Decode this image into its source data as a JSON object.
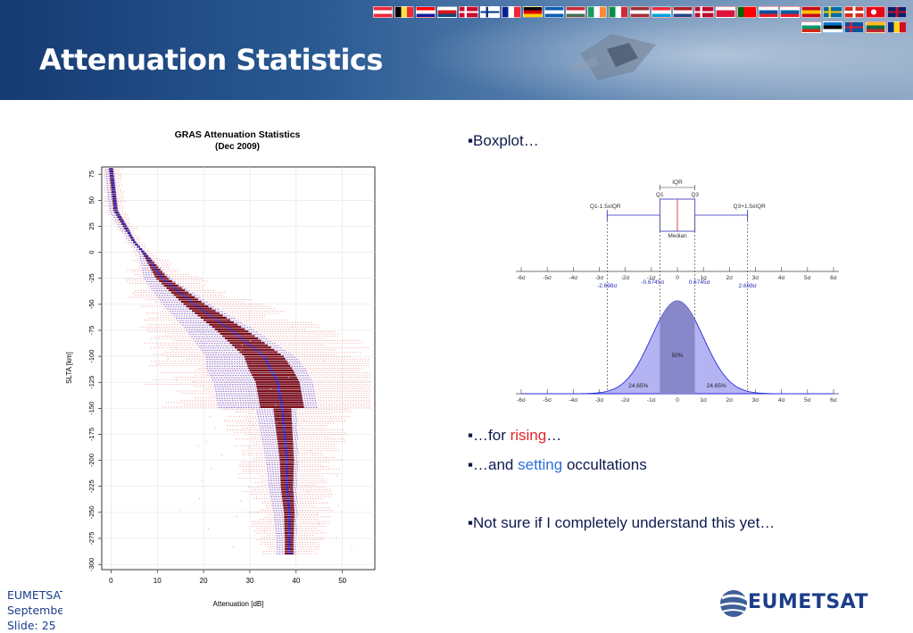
{
  "slide": {
    "title": "Attenuation Statistics",
    "bullets": {
      "b1": "▪Boxplot…",
      "b2_pre": "▪…for ",
      "b2_hl": "rising",
      "b2_post": "…",
      "b3_pre": "▪…and ",
      "b3_hl": "setting",
      "b3_post": " occultations",
      "b4": "▪Not sure if I completely understand this yet…"
    },
    "footer": {
      "org": "EUMETSAT",
      "date": "Septembe",
      "slide": "Slide: 25"
    },
    "logo_text": "EUMETSAT",
    "colors": {
      "header_dark": "#163a72",
      "accent_red": "#e0262b",
      "accent_blue": "#2e6fd8",
      "text_dark": "#0d1a4d"
    },
    "flag_icons": [
      "austria-flag",
      "belgium-flag",
      "croatia-flag",
      "czech-flag",
      "denmark-flag",
      "finland-flag",
      "france-flag",
      "germany-flag",
      "greece-flag",
      "hungary-flag",
      "ireland-flag",
      "italy-flag",
      "latvia-flag",
      "luxembourg-flag",
      "netherlands-flag",
      "norway-flag",
      "poland-flag",
      "portugal-flag",
      "slovakia-flag",
      "slovenia-flag",
      "spain-flag",
      "sweden-flag",
      "switzerland-flag",
      "turkey-flag",
      "uk-flag",
      "bulgaria-flag",
      "estonia-flag",
      "iceland-flag",
      "lithuania-flag",
      "romania-flag"
    ]
  },
  "chart_data": [
    {
      "type": "scatter",
      "title": "GRAS Attenuation Statistics",
      "subtitle": "(Dec 2009)",
      "xlabel": "Attenuation [dB]",
      "ylabel": "SLTA [km]",
      "xlim": [
        -2,
        57
      ],
      "ylim": [
        -305,
        82
      ],
      "xticks": [
        "0",
        "10",
        "20",
        "30",
        "40",
        "50"
      ],
      "yticks": [
        "75",
        "50",
        "25",
        "0",
        "-25",
        "-50",
        "-75",
        "-100",
        "-125",
        "-150",
        "-175",
        "-200",
        "-225",
        "-250",
        "-275",
        "-300"
      ],
      "grid": true,
      "series": [
        {
          "median_profile": {
            "slta": [
              80,
              60,
              40,
              25,
              10,
              0,
              -25,
              -50,
              -75,
              -100,
              -125,
              -150,
              -175,
              -200,
              -225,
              -250,
              -275,
              -290
            ],
            "attenuation": [
              0,
              0.5,
              1,
              3,
              5,
              7,
              11,
              18,
              26,
              33,
              36,
              37,
              37.5,
              38,
              38,
              38.5,
              38.5,
              38.5
            ]
          }
        }
      ]
    },
    {
      "type": "area",
      "title": "",
      "box_labels": {
        "iqr": "IQR",
        "q1": "Q1",
        "q3": "Q3",
        "lower": "Q1-1.5xIQR",
        "upper": "Q3+1.5xIQR",
        "median": "Median"
      },
      "xticks": [
        "-6σ",
        "-5σ",
        "-4σ",
        "-3σ",
        "-2σ",
        "-1σ",
        "0",
        "1σ",
        "2σ",
        "3σ",
        "4σ",
        "5σ",
        "6σ"
      ],
      "xlim": [
        -6,
        6
      ],
      "quantiles": {
        "q1": -0.6745,
        "q3": 0.6745,
        "lower": -2.698,
        "upper": 2.698
      },
      "quantile_labels": {
        "q1": "-0.6745σ",
        "q3": "0.6745σ",
        "lower": "-2.698σ",
        "upper": "2.698σ"
      },
      "area_labels": {
        "center": "50%",
        "left": "24.65%",
        "right": "24.65%"
      }
    }
  ]
}
